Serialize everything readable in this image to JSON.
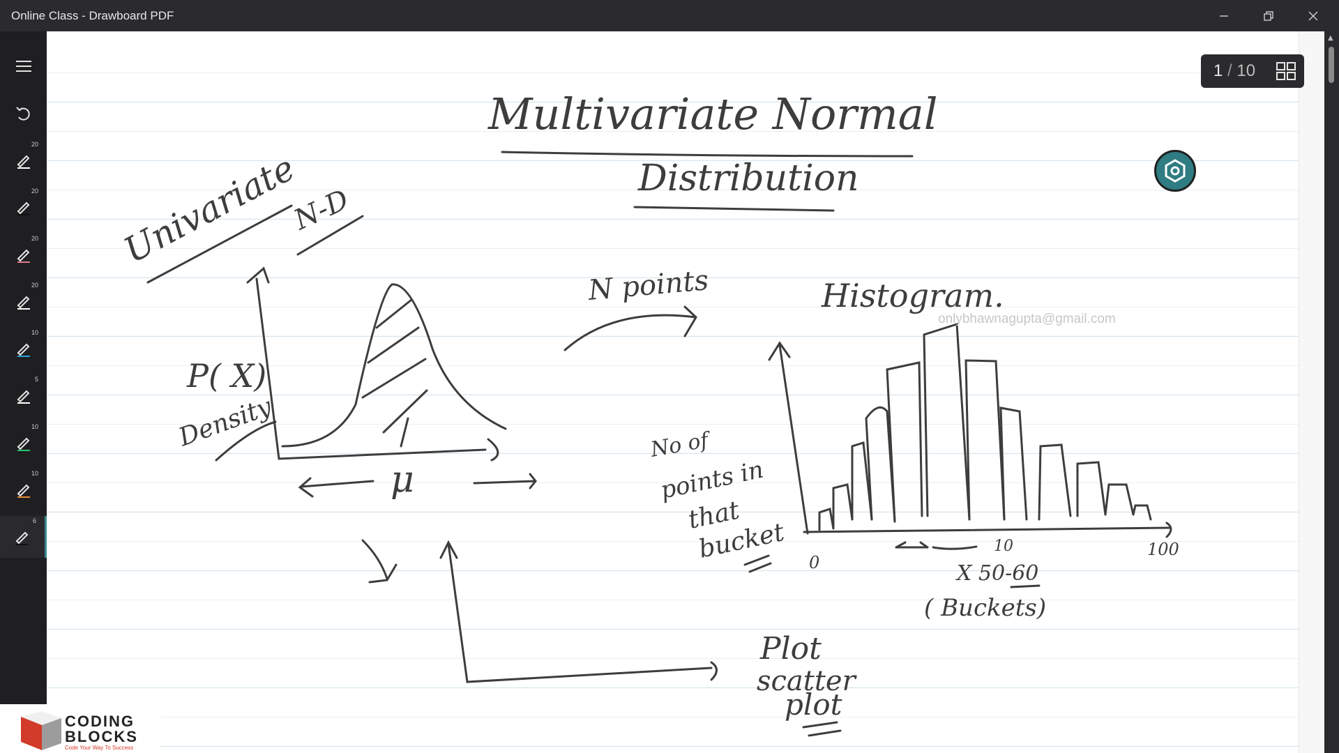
{
  "window": {
    "title": "Online Class - Drawboard PDF"
  },
  "pager": {
    "current": "1",
    "total": "10",
    "separator": "/"
  },
  "toolbar": {
    "pen_sizes": [
      "20",
      "20",
      "20",
      "20",
      "10",
      "5",
      "10",
      "10",
      "6"
    ]
  },
  "watermark": "onlybhawnagupta@gmail.com",
  "ink": {
    "title_line1": "Multivariate Normal",
    "title_line2": "Distribution",
    "univariate": "Univariate",
    "nd": "N-D",
    "px": "P( X)",
    "density": "Density",
    "mu": "μ",
    "n_points": "N points",
    "histogram": "Histogram.",
    "no_of": "No of",
    "points_in": "points in",
    "that": "that",
    "bucket": "bucket",
    "zero": "0",
    "ten": "10",
    "hundred": "100",
    "x_range": "X 50-60",
    "buckets": "( Buckets)",
    "plot": "Plot",
    "scatter": "scatter",
    "plot2": "plot"
  },
  "logo": {
    "line1": "CODING",
    "line2": "BLOCKS",
    "tagline": "Code Your Way To Success"
  },
  "colors": {
    "teal": "#2f7c82",
    "accent_red": "#d23b2a",
    "pen_pink": "#e07a8a",
    "pen_blue": "#2aa4e0",
    "pen_green": "#29c36a",
    "pen_orange": "#e98a32"
  }
}
